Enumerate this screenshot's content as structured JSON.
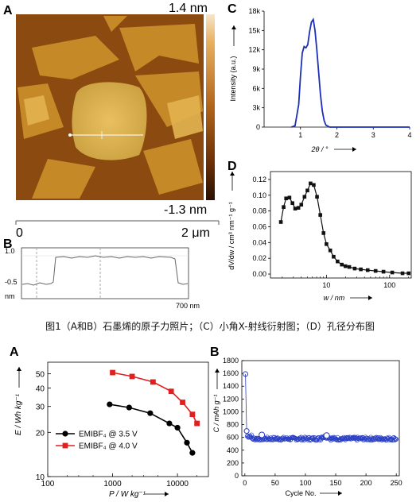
{
  "caption": "图1（A和B）石墨烯的原子力照片；（C）小角X-射线衍射图；（D）孔径分布图",
  "afm": {
    "label_a": "A",
    "label_b": "B",
    "scale_top": "1.4 nm",
    "scale_bottom": "-1.3 nm",
    "length_start": "0",
    "length_end": "2 μm",
    "profile": {
      "y_top": "1.0",
      "y_mid": "-0.5",
      "y_unit": "nm",
      "x_end": "700 nm"
    },
    "colors": {
      "dark": "#5a2a08",
      "mid": "#a35a12",
      "light": "#d9a440",
      "bright": "#f0d080"
    }
  },
  "chart_data": [
    {
      "id": "C",
      "type": "line",
      "label": "C",
      "xlabel": "2θ / °",
      "ylabel": "Intensity (a.u.)",
      "xlim": [
        0,
        4
      ],
      "ylim": [
        0,
        18000
      ],
      "xticks": [
        1,
        2,
        3,
        4
      ],
      "yticks": [
        0,
        3000,
        6000,
        9000,
        12000,
        15000,
        18000
      ],
      "yticklabels": [
        "0",
        "3k",
        "6k",
        "9k",
        "12k",
        "15k",
        "18k"
      ],
      "color": "#1c2fb5",
      "x": [
        0.75,
        0.85,
        0.95,
        1.0,
        1.05,
        1.1,
        1.15,
        1.2,
        1.25,
        1.3,
        1.35,
        1.4,
        1.45,
        1.5,
        1.55,
        1.6,
        1.65,
        1.7,
        1.8,
        1.9,
        2.0,
        4.0
      ],
      "y": [
        0,
        200,
        3500,
        8000,
        11500,
        12500,
        12300,
        12800,
        14800,
        16300,
        16700,
        15000,
        12000,
        8500,
        5000,
        2500,
        1000,
        300,
        0,
        0,
        0,
        0
      ]
    },
    {
      "id": "D",
      "type": "scatter",
      "label": "D",
      "xlabel": "w / nm",
      "ylabel": "dV/dw / cm³ nm⁻¹ g⁻¹",
      "xscale": "log",
      "xlim": [
        1.3,
        220
      ],
      "ylim": [
        -0.005,
        0.13
      ],
      "xticks": [
        10,
        100
      ],
      "yticks": [
        0,
        0.02,
        0.04,
        0.06,
        0.08,
        0.1,
        0.12
      ],
      "yticklabels": [
        "0.00",
        "0.02",
        "0.04",
        "0.06",
        "0.08",
        "0.10",
        "0.12"
      ],
      "color": "#111111",
      "x": [
        1.9,
        2.1,
        2.3,
        2.6,
        2.9,
        3.2,
        3.6,
        4.0,
        4.5,
        5.0,
        5.6,
        6.3,
        7.1,
        8.0,
        9.0,
        10.0,
        11.5,
        13,
        15,
        17.5,
        20,
        23,
        28,
        35,
        45,
        60,
        80,
        110,
        160,
        200
      ],
      "y": [
        0.066,
        0.085,
        0.096,
        0.097,
        0.09,
        0.083,
        0.084,
        0.088,
        0.098,
        0.106,
        0.115,
        0.113,
        0.098,
        0.075,
        0.052,
        0.038,
        0.03,
        0.022,
        0.016,
        0.012,
        0.01,
        0.009,
        0.007,
        0.006,
        0.005,
        0.004,
        0.003,
        0.002,
        0.001,
        0.001
      ]
    },
    {
      "id": "A2",
      "type": "line",
      "label": "A",
      "xlabel": "P / W kg⁻¹",
      "ylabel": "E / Wh kg⁻¹",
      "xscale": "log",
      "yscale": "log",
      "xlim": [
        100,
        30000
      ],
      "ylim": [
        10,
        60
      ],
      "xticks": [
        100,
        1000,
        10000
      ],
      "yticks": [
        10,
        20,
        30,
        40,
        50
      ],
      "legend": "bottom-left",
      "series": [
        {
          "name": "EMIBF₄ @ 3.5 V",
          "color": "#000000",
          "marker": "circle",
          "x": [
            900,
            1800,
            3800,
            7500,
            10000,
            14000,
            17000
          ],
          "y": [
            31,
            29.5,
            27,
            23,
            21.5,
            17,
            14.5
          ]
        },
        {
          "name": "EMIBF₄ @ 4.0 V",
          "color": "#e02020",
          "marker": "square",
          "x": [
            1000,
            2000,
            4200,
            8000,
            12000,
            17000,
            20000
          ],
          "y": [
            51,
            48,
            44,
            38,
            32,
            26.5,
            23
          ]
        }
      ]
    },
    {
      "id": "B2",
      "type": "scatter",
      "label": "B",
      "xlabel": "Cycle No.",
      "ylabel": "C / mAh g⁻¹",
      "xlim": [
        -5,
        255
      ],
      "ylim": [
        0,
        1800
      ],
      "xticks": [
        0,
        50,
        100,
        150,
        200,
        250
      ],
      "yticks": [
        0,
        200,
        400,
        600,
        800,
        1000,
        1200,
        1400,
        1600,
        1800
      ],
      "color": "#2a3fc4",
      "series_note": "dense discharge capacity points",
      "first_point": [
        1,
        1590
      ],
      "second_point": [
        3,
        700
      ],
      "plateau": 580,
      "highlight_points": [
        [
          28,
          640
        ],
        [
          135,
          630
        ]
      ]
    }
  ]
}
